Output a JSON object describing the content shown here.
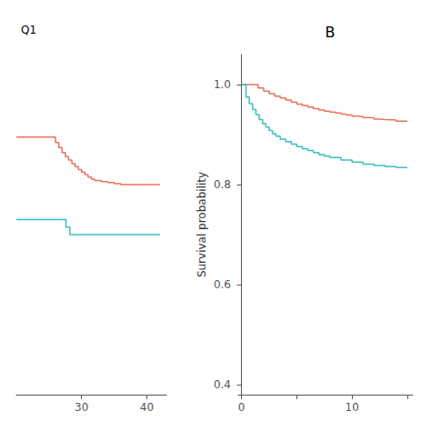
{
  "chart_data": [
    {
      "type": "step",
      "title": "Q1",
      "xlim": [
        20.0,
        43.0
      ],
      "xticks": [
        30,
        40
      ],
      "ylim": [
        0.38,
        1.06
      ],
      "tick_labels": "x",
      "grid": false,
      "series": [
        {
          "color": "#E8735A",
          "x": [
            20.0,
            25.5,
            26.0,
            26.5,
            27.0,
            27.5,
            28.0,
            28.5,
            29.0,
            29.5,
            30.0,
            30.5,
            31.0,
            31.5,
            32.0,
            33.0,
            34.0,
            35.0,
            36.0,
            42.0
          ],
          "values": [
            0.895,
            0.895,
            0.884,
            0.874,
            0.864,
            0.856,
            0.849,
            0.842,
            0.836,
            0.83,
            0.825,
            0.82,
            0.815,
            0.811,
            0.808,
            0.806,
            0.804,
            0.802,
            0.8,
            0.8
          ]
        },
        {
          "color": "#3BBFBF",
          "x": [
            20.0,
            27.2,
            27.6,
            28.2,
            42.0
          ],
          "values": [
            0.73,
            0.73,
            0.715,
            0.7,
            0.7
          ]
        }
      ]
    },
    {
      "type": "step",
      "title": "B",
      "ylabel": "Survival probability",
      "xlim": [
        -0.3,
        15.5
      ],
      "xticks": [
        0,
        {
          "value": 5,
          "label": null
        },
        10,
        {
          "value": 15,
          "label": null
        }
      ],
      "ylim": [
        0.38,
        1.06
      ],
      "yticks": [
        0.4,
        0.6,
        0.8,
        {
          "value": 1.0,
          "label": "1.0"
        }
      ],
      "grid": false,
      "series": [
        {
          "color": "#E8735A",
          "x": [
            0,
            1.0,
            1.5,
            2.0,
            2.5,
            3.0,
            3.5,
            4.0,
            4.5,
            5.0,
            5.5,
            6.0,
            6.5,
            7.0,
            7.5,
            8.0,
            8.5,
            9.0,
            9.5,
            10.0,
            10.5,
            11.0,
            11.5,
            12.0,
            12.5,
            13.0,
            14.0,
            15.0
          ],
          "values": [
            1.0,
            1.0,
            0.993,
            0.987,
            0.982,
            0.977,
            0.973,
            0.969,
            0.965,
            0.961,
            0.958,
            0.955,
            0.952,
            0.949,
            0.947,
            0.945,
            0.943,
            0.941,
            0.939,
            0.937,
            0.936,
            0.934,
            0.933,
            0.931,
            0.93,
            0.929,
            0.927,
            0.926
          ]
        },
        {
          "color": "#3BBFBF",
          "x": [
            0,
            0.4,
            0.7,
            1.0,
            1.3,
            1.6,
            1.9,
            2.2,
            2.5,
            2.8,
            3.1,
            3.5,
            4.0,
            4.5,
            5.0,
            5.5,
            6.0,
            6.5,
            7.0,
            7.5,
            8.0,
            9.0,
            10.0,
            11.0,
            12.0,
            13.0,
            14.0,
            15.0
          ],
          "values": [
            1.0,
            0.975,
            0.962,
            0.95,
            0.94,
            0.93,
            0.922,
            0.915,
            0.908,
            0.902,
            0.897,
            0.891,
            0.886,
            0.881,
            0.876,
            0.872,
            0.868,
            0.864,
            0.86,
            0.857,
            0.854,
            0.849,
            0.845,
            0.841,
            0.838,
            0.836,
            0.834,
            0.833
          ]
        }
      ]
    }
  ]
}
